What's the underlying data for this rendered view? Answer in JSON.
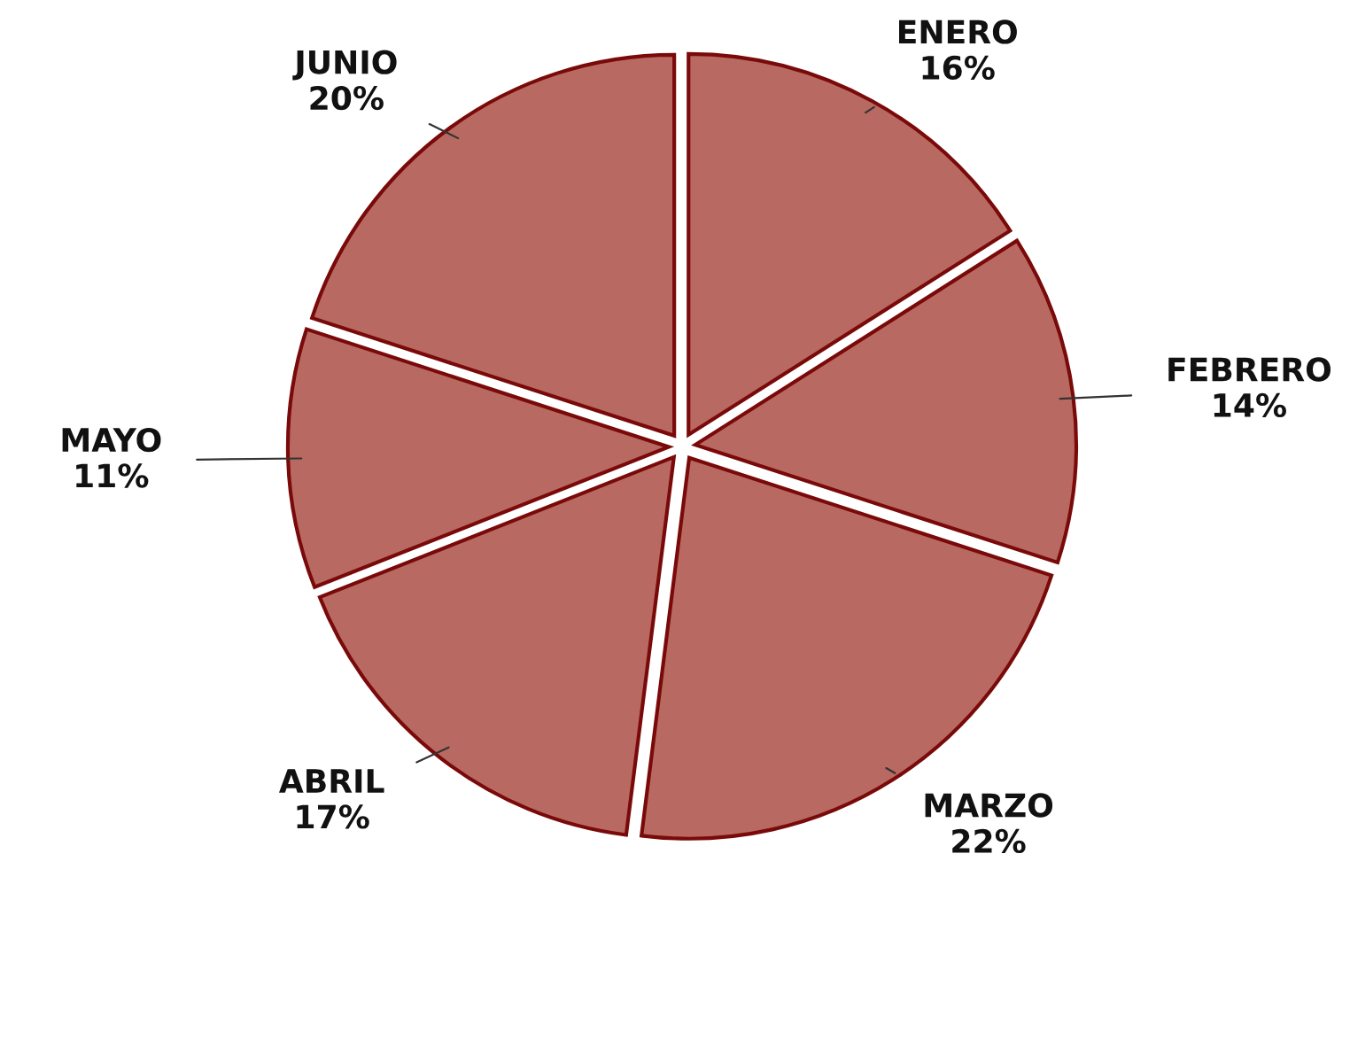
{
  "chart_data": {
    "type": "pie",
    "categories": [
      "ENERO",
      "FEBRERO",
      "MARZO",
      "ABRIL",
      "MAYO",
      "JUNIO"
    ],
    "values": [
      16,
      14,
      22,
      17,
      11,
      20
    ],
    "value_labels": [
      "16%",
      "14%",
      "22%",
      "17%",
      "11%",
      "20%"
    ],
    "colors": [
      "#b86a62",
      "#b86a62",
      "#b86a62",
      "#b86a62",
      "#b86a62",
      "#b86a62"
    ]
  }
}
